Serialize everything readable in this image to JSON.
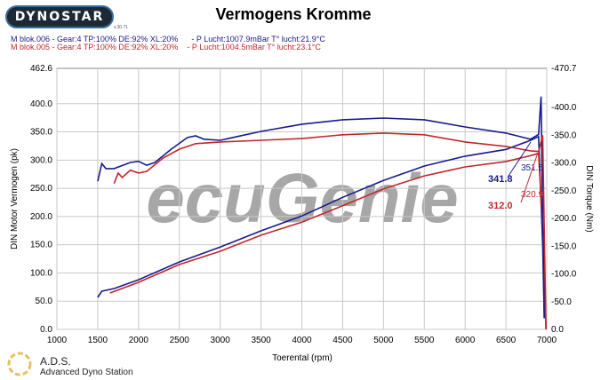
{
  "header": {
    "brand": "DYNOSTAR",
    "brand_sub": "v.30.71",
    "title": "Vermogens Kromme",
    "run1": "M blok.006 - Gear:4 TP:100% DE:92% XL:20%      - P Lucht:1007.9mBar T° lucht:21.9°C",
    "run2": "M blok.005 - Gear:4 TP:100% DE:92% XL:20%    - P Lucht:1004.5mBar T° lucht:23.1°C"
  },
  "footer": {
    "ads": "A.D.S.",
    "ads_full": "Advanced Dyno Station"
  },
  "watermark": "ecuGenie",
  "colors": {
    "blue": "#1a1a8c",
    "red": "#c0282a",
    "grid": "#c8c8c8"
  },
  "chart_data": {
    "type": "line",
    "title": "Vermogens Kromme",
    "xlabel": "Toerental (rpm)",
    "ylabel": "DIN Motor Vermogen (pk)",
    "y2label": "DIN Torque (Nm)",
    "xlim": [
      1000,
      7000
    ],
    "ylim": [
      0,
      462.6
    ],
    "y2lim": [
      0,
      470.7
    ],
    "xticks": [
      1000,
      1500,
      2000,
      2500,
      3000,
      3500,
      4000,
      4500,
      5000,
      5500,
      6000,
      6500,
      7000
    ],
    "yticks": [
      "0.0",
      "50.0",
      "100.0",
      "150.0",
      "200.0",
      "250.0",
      "300.0",
      "350.0",
      "400.0",
      "462.6"
    ],
    "y2ticks": [
      "0.0",
      "-50.0",
      "-100.0",
      "-150.0",
      "-200.0",
      "-250.0",
      "-300.0",
      "-350.0",
      "-400.0",
      "-470.7"
    ],
    "grid": true,
    "series": [
      {
        "name": "M blok.006 power",
        "axis": "left",
        "color": "#1a1a8c",
        "x": [
          1500,
          1550,
          1700,
          2000,
          2500,
          3000,
          3500,
          4000,
          4500,
          5000,
          5500,
          6000,
          6500,
          6800,
          6900,
          6950,
          6970
        ],
        "y": [
          56.6,
          67.7,
          72.4,
          88,
          119.6,
          146,
          174.7,
          201,
          234,
          264,
          289.5,
          307,
          319,
          335,
          341.8,
          150,
          20
        ]
      },
      {
        "name": "M blok.005 power",
        "axis": "left",
        "color": "#c0282a",
        "x": [
          1650,
          2000,
          2500,
          3000,
          3500,
          4000,
          4500,
          5000,
          5500,
          6000,
          6500,
          6800,
          6900,
          6960,
          6990
        ],
        "y": [
          64.5,
          83.4,
          115,
          138.5,
          167,
          190,
          219,
          249,
          272,
          288,
          297.5,
          308,
          312,
          150,
          0
        ]
      },
      {
        "name": "M blok.006 torque",
        "axis": "right",
        "color": "#1a1a8c",
        "x": [
          1500,
          1550,
          1600,
          1700,
          1900,
          2000,
          2100,
          2200,
          2400,
          2600,
          2700,
          2800,
          3000,
          3500,
          4000,
          4500,
          5000,
          5500,
          6000,
          6500,
          6800,
          6900,
          6930,
          6950,
          6970
        ],
        "y": [
          267,
          299,
          290,
          290,
          301,
          303,
          296,
          301,
          325,
          346,
          349,
          343,
          341,
          357,
          370,
          378,
          381,
          378,
          365,
          354,
          343,
          351.5,
          420,
          200,
          20
        ]
      },
      {
        "name": "M blok.005 torque",
        "axis": "right",
        "color": "#c0282a",
        "x": [
          1700,
          1750,
          1800,
          1900,
          2000,
          2100,
          2300,
          2500,
          2700,
          3000,
          3500,
          4000,
          4500,
          5000,
          5500,
          6000,
          6500,
          6800,
          6900,
          6950,
          6990
        ],
        "y": [
          263,
          282,
          274,
          287,
          282,
          285,
          309,
          325,
          335,
          338,
          341,
          344,
          351,
          354,
          351,
          338,
          330,
          322,
          320.9,
          350,
          0
        ]
      }
    ],
    "annotations": [
      {
        "text": "341.8",
        "color": "#1a1a8c"
      },
      {
        "text": "312.0",
        "color": "#c0282a"
      },
      {
        "text": "351.5",
        "color": "#1a1a8c"
      },
      {
        "text": "320.9",
        "color": "#c0282a"
      }
    ]
  }
}
